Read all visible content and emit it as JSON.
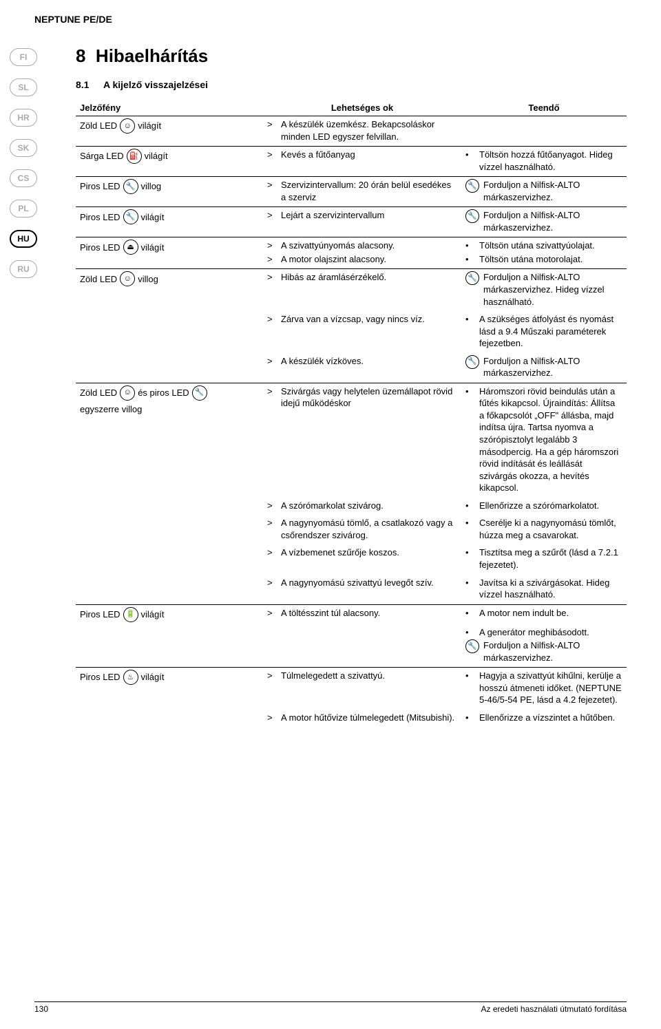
{
  "header": {
    "product": "NEPTUNE PE/DE"
  },
  "langs": [
    "FI",
    "SL",
    "HR",
    "SK",
    "CS",
    "PL",
    "HU",
    "RU"
  ],
  "active_lang": "HU",
  "section": {
    "number": "8",
    "title": "Hibaelhárítás",
    "sub_number": "8.1",
    "sub_title": "A kijelző visszajelzései"
  },
  "col_headers": {
    "c1": "Jelzőfény",
    "c2": "Lehetséges ok",
    "c3": "Teendő"
  },
  "icons": {
    "person": "☺",
    "fuel": "⛽",
    "wrench": "🔧",
    "pump": "⏏",
    "battery": "🔋",
    "heat": "♨"
  },
  "rows": [
    {
      "grp": true,
      "led": [
        {
          "t": "Zöld LED"
        },
        {
          "i": "☺"
        },
        {
          "t": "világít"
        }
      ],
      "causes": [
        {
          "t": "A készülék üzemkész. Bekapcsoláskor minden LED egyszer felvillan."
        }
      ],
      "actions": []
    },
    {
      "grp": true,
      "led": [
        {
          "t": "Sárga LED"
        },
        {
          "i": "⛽"
        },
        {
          "t": "világít"
        }
      ],
      "causes": [
        {
          "t": "Kevés a fűtőanyag"
        }
      ],
      "actions": [
        {
          "dot": "•",
          "t": "Töltsön hozzá fűtőanyagot. Hideg vízzel használható."
        }
      ]
    },
    {
      "grp": true,
      "led": [
        {
          "t": "Piros LED"
        },
        {
          "i": "🔧"
        },
        {
          "t": "villog"
        }
      ],
      "causes": [
        {
          "t": "Szervizintervallum: 20 órán belül esedékes a szerviz"
        }
      ],
      "actions": [
        {
          "sv": "🔧",
          "t": "Forduljon a Nilfisk-ALTO márkaszervizhez."
        }
      ]
    },
    {
      "grp": true,
      "led": [
        {
          "t": "Piros LED"
        },
        {
          "i": "🔧"
        },
        {
          "t": "világít"
        }
      ],
      "causes": [
        {
          "t": "Lejárt a szervizintervallum"
        }
      ],
      "actions": [
        {
          "sv": "🔧",
          "t": "Forduljon a Nilfisk-ALTO márkaszervizhez."
        }
      ]
    },
    {
      "grp": true,
      "led": [
        {
          "t": "Piros LED"
        },
        {
          "i": "⏏"
        },
        {
          "t": "világít"
        }
      ],
      "causes": [
        {
          "t": "A szivattyúnyomás alacsony."
        },
        {
          "t": "A motor olajszint alacsony."
        }
      ],
      "actions": [
        {
          "dot": "•",
          "t": "Töltsön utána szivattyúolajat."
        },
        {
          "dot": "•",
          "t": "Töltsön utána motorolajat."
        }
      ]
    },
    {
      "grp": true,
      "led": [
        {
          "t": "Zöld LED"
        },
        {
          "i": "☺"
        },
        {
          "t": "villog"
        }
      ],
      "causes": [
        {
          "t": "Hibás az áramlásérzékelő."
        }
      ],
      "actions": [
        {
          "sv": "🔧",
          "t": "Forduljon a Nilfisk-ALTO márkaszervizhez. Hideg vízzel használható."
        }
      ]
    },
    {
      "grp": false,
      "causes": [
        {
          "t": "Zárva van a vízcsap, vagy nincs víz."
        }
      ],
      "actions": [
        {
          "dot": "•",
          "t": "A szükséges átfolyást és nyomást lásd a 9.4 Műszaki paraméterek fejezetben."
        }
      ]
    },
    {
      "grp": false,
      "causes": [
        {
          "t": "A készülék vízköves."
        }
      ],
      "actions": [
        {
          "sv": "🔧",
          "t": "Forduljon a Nilfisk-ALTO márkaszervizhez."
        }
      ]
    },
    {
      "grp": true,
      "led": [
        {
          "t": "Zöld LED"
        },
        {
          "i": "☺"
        },
        {
          "t": "és piros LED"
        },
        {
          "i": "🔧"
        },
        {
          "t": "egyszerre villog"
        }
      ],
      "causes": [
        {
          "t": "Szivárgás vagy helytelen üzemállapot rövid idejű működéskor"
        }
      ],
      "actions": [
        {
          "dot": "•",
          "t": "Háromszori rövid beindulás után a fűtés kikapcsol. Újraindítás: Állítsa a főkapcsolót „OFF\" állásba, majd indítsa újra. Tartsa nyomva a szórópisztolyt legalább 3 másodpercig. Ha a gép háromszori rövid indítását és leállását szivárgás okozza, a hevítés kikapcsol."
        }
      ]
    },
    {
      "grp": false,
      "causes": [
        {
          "t": "A szórómarkolat szivárog."
        }
      ],
      "actions": [
        {
          "dot": "•",
          "t": "Ellenőrizze a szórómarkolatot."
        }
      ]
    },
    {
      "grp": false,
      "causes": [
        {
          "t": "A nagynyomású tömlő, a csatlakozó vagy a csőrendszer szivárog."
        }
      ],
      "actions": [
        {
          "dot": "•",
          "t": "Cserélje ki a nagynyomású tömlőt, húzza meg a csavarokat."
        }
      ]
    },
    {
      "grp": false,
      "causes": [
        {
          "t": "A vízbemenet szűrője koszos."
        }
      ],
      "actions": [
        {
          "dot": "•",
          "t": "Tisztítsa meg a szűrőt (lásd a 7.2.1 fejezetet)."
        }
      ]
    },
    {
      "grp": false,
      "causes": [
        {
          "t": "A nagynyomású szivattyú levegőt szív."
        }
      ],
      "actions": [
        {
          "dot": "•",
          "t": "Javítsa ki a szivárgásokat. Hideg vízzel használható."
        }
      ]
    },
    {
      "grp": true,
      "led": [
        {
          "t": "Piros LED"
        },
        {
          "i": "🔋"
        },
        {
          "t": "világít"
        }
      ],
      "causes": [
        {
          "t": "A töltésszint túl alacsony."
        }
      ],
      "actions": [
        {
          "dot": "•",
          "t": "A motor nem indult be."
        }
      ]
    },
    {
      "grp": false,
      "actions": [
        {
          "dot": "•",
          "t": "A generátor meghibásodott."
        },
        {
          "sv": "🔧",
          "t": "Forduljon a Nilfisk-ALTO márkaszervizhez."
        }
      ]
    },
    {
      "grp": true,
      "led": [
        {
          "t": "Piros LED"
        },
        {
          "i": "♨"
        },
        {
          "t": "világít"
        }
      ],
      "causes": [
        {
          "t": "Túlmelegedett a szivattyú."
        }
      ],
      "actions": [
        {
          "dot": "•",
          "t": "Hagyja a szivattyút kihűlni, kerülje a hosszú átmeneti időket. (NEPTUNE 5-46/5-54 PE, lásd a 4.2 fejezetet)."
        }
      ]
    },
    {
      "grp": false,
      "causes": [
        {
          "t": "A motor hűtővize túlmelegedett (Mitsubishi)."
        }
      ],
      "actions": [
        {
          "dot": "•",
          "t": "Ellenőrizze a vízszintet a hűtőben."
        }
      ]
    }
  ],
  "footer": {
    "page": "130",
    "text": "Az eredeti használati útmutató fordítása"
  }
}
